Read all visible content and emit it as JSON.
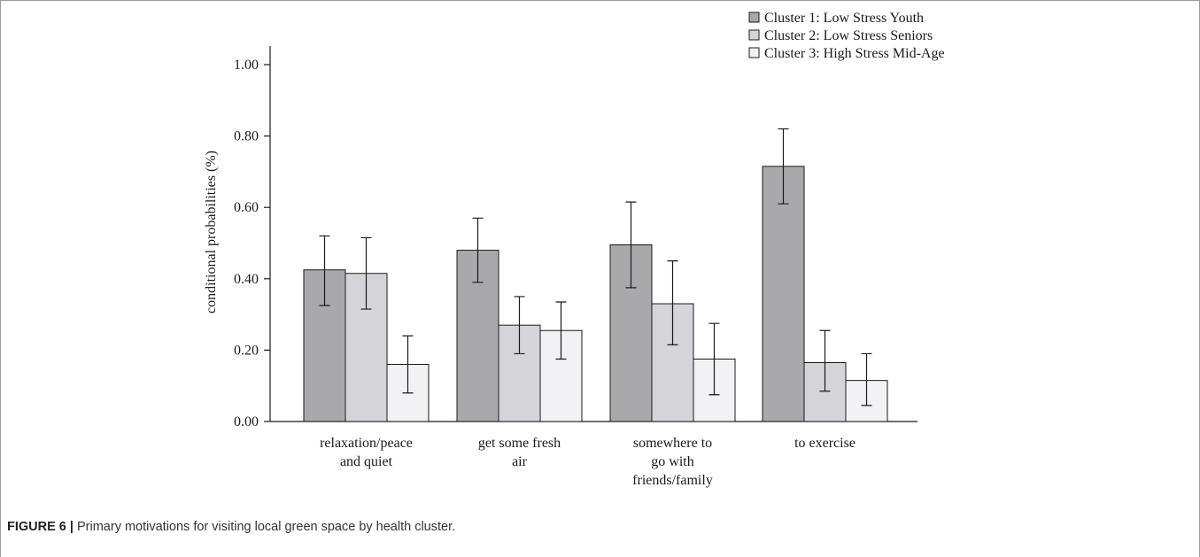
{
  "figure": {
    "caption_label": "FIGURE 6 |",
    "caption_text": " Primary motivations for visiting local green space by health cluster."
  },
  "chart_data": {
    "type": "bar",
    "title": "",
    "xlabel": "",
    "ylabel": "conditional probabilities (%)",
    "ylim": [
      0,
      1.0
    ],
    "yticks": [
      "0.00",
      "0.20",
      "0.40",
      "0.60",
      "0.80",
      "1.00"
    ],
    "ytick_values": [
      0,
      0.2,
      0.4,
      0.6,
      0.8,
      1.0
    ],
    "categories": [
      [
        "relaxation/peace",
        "and quiet"
      ],
      [
        "get some fresh",
        "air"
      ],
      [
        "somewhere to",
        "go with",
        "friends/family"
      ],
      [
        "to exercise"
      ]
    ],
    "series": [
      {
        "name": "Cluster 1: Low Stress Youth",
        "color": "#a9a9ac",
        "values": [
          0.425,
          0.48,
          0.495,
          0.715
        ],
        "err_low": [
          0.325,
          0.39,
          0.375,
          0.61
        ],
        "err_high": [
          0.52,
          0.57,
          0.615,
          0.82
        ]
      },
      {
        "name": "Cluster 2: Low Stress Seniors",
        "color": "#d5d5d9",
        "values": [
          0.415,
          0.27,
          0.33,
          0.165
        ],
        "err_low": [
          0.315,
          0.19,
          0.215,
          0.085
        ],
        "err_high": [
          0.515,
          0.35,
          0.45,
          0.255
        ]
      },
      {
        "name": "Cluster 3: High Stress Mid-Age",
        "color": "#f2f2f5",
        "values": [
          0.16,
          0.255,
          0.175,
          0.115
        ],
        "err_low": [
          0.08,
          0.175,
          0.075,
          0.045
        ],
        "err_high": [
          0.24,
          0.335,
          0.275,
          0.19
        ]
      }
    ],
    "legend_position": "top-right",
    "grid": false
  }
}
